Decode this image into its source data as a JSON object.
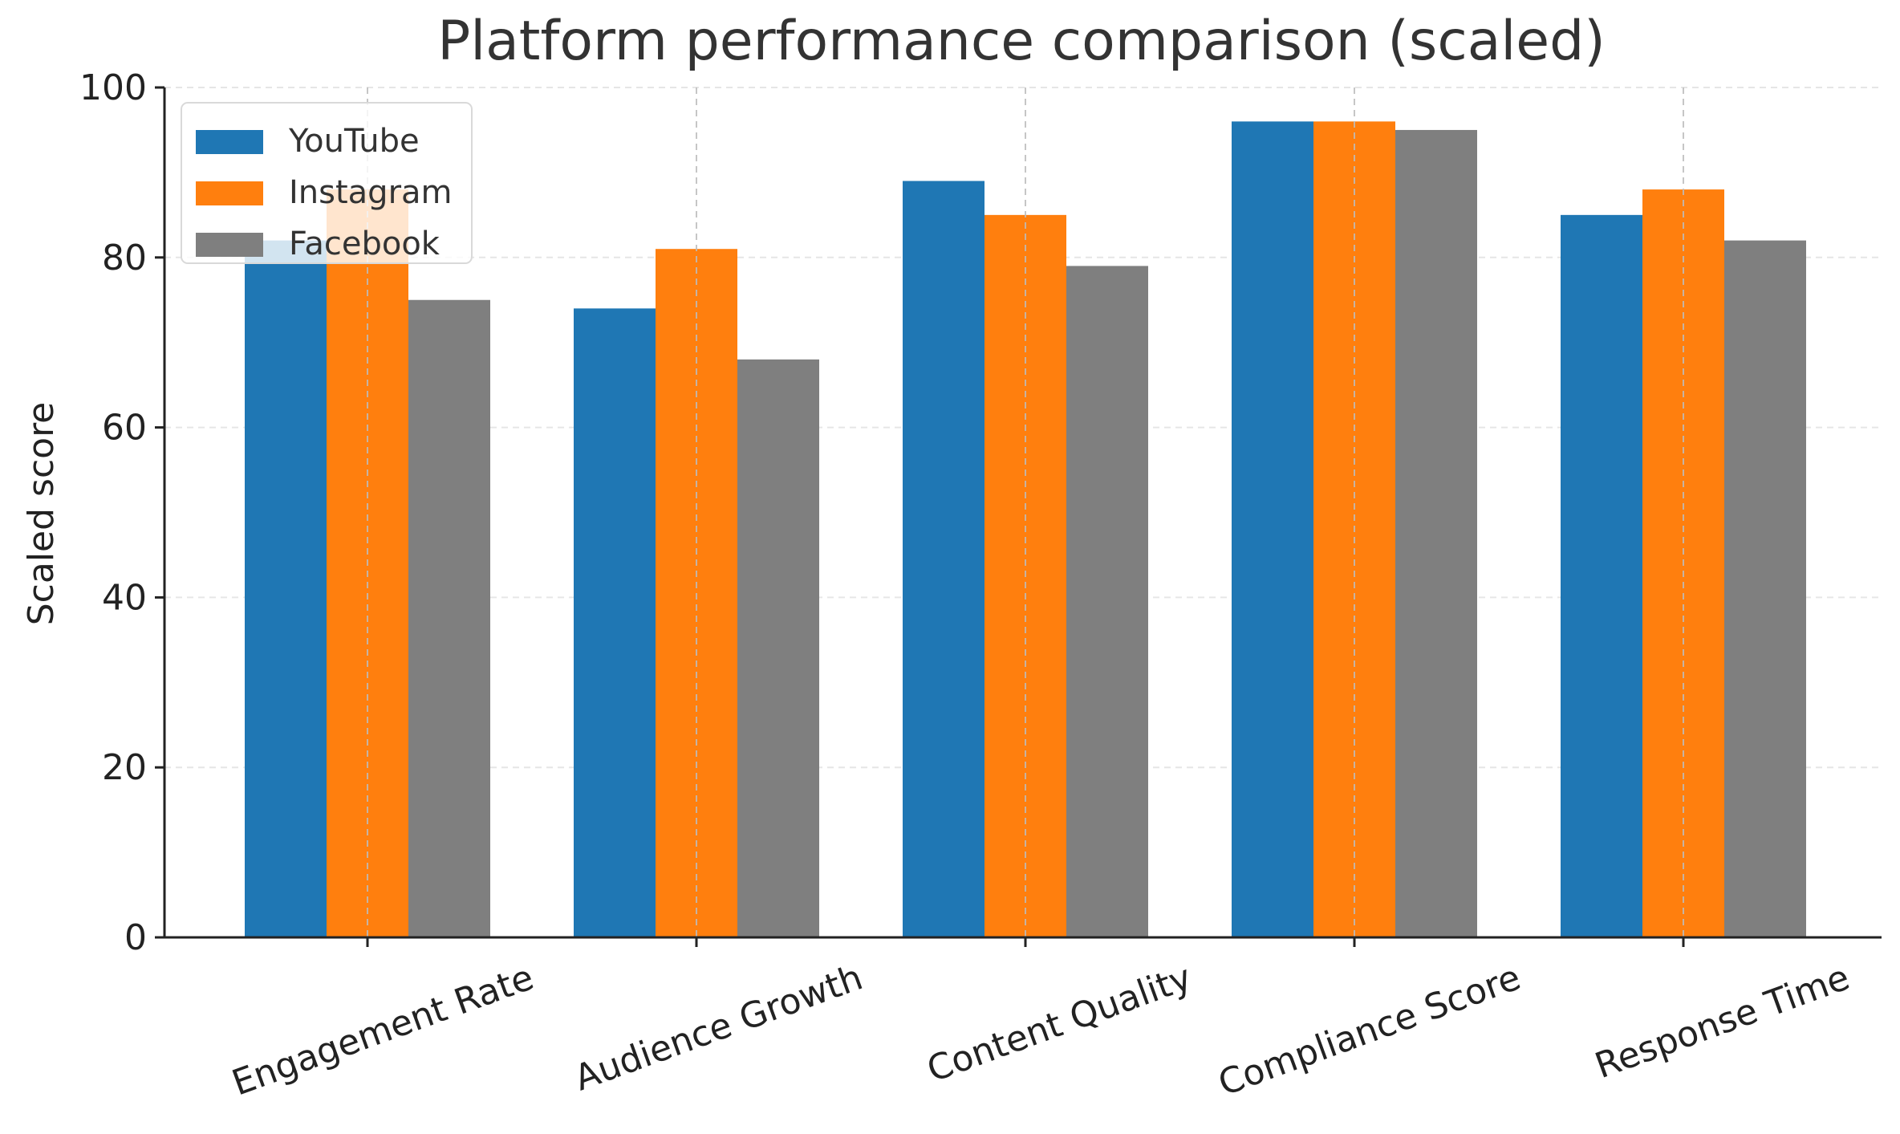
{
  "chart_data": {
    "type": "bar",
    "title": "Platform performance comparison (scaled)",
    "xlabel": "",
    "ylabel": "Scaled score",
    "categories": [
      "Engagement Rate",
      "Audience Growth",
      "Content Quality",
      "Compliance Score",
      "Response Time"
    ],
    "series": [
      {
        "name": "YouTube",
        "color": "#1f77b4",
        "values": [
          82,
          74,
          89,
          96,
          85
        ]
      },
      {
        "name": "Instagram",
        "color": "#ff7f0e",
        "values": [
          88,
          81,
          85,
          96,
          88
        ]
      },
      {
        "name": "Facebook",
        "color": "#7f7f7f",
        "values": [
          75,
          68,
          79,
          95,
          82
        ]
      }
    ],
    "ylim": [
      0,
      100
    ],
    "yticks": [
      "0",
      "20",
      "40",
      "60",
      "80",
      "100"
    ],
    "grid": true,
    "legend_position": "top-left"
  }
}
